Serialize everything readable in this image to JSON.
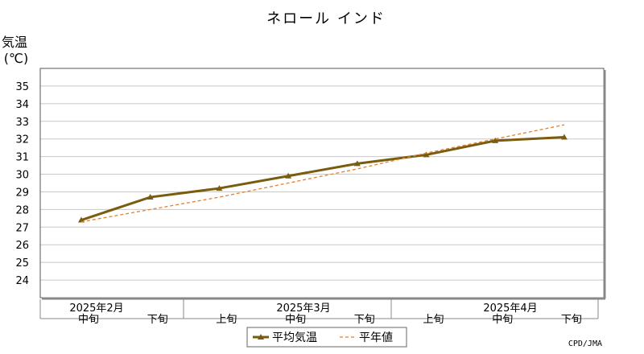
{
  "chart_data": {
    "type": "line",
    "title": "ネロール インド",
    "ylabel_line1": "気温",
    "ylabel_line2": "(℃)",
    "ylim": [
      23,
      36
    ],
    "yticks": [
      24,
      25,
      26,
      27,
      28,
      29,
      30,
      31,
      32,
      33,
      34,
      35
    ],
    "grid": true,
    "legend_placement": "bottom",
    "credit": "CPD/JMA",
    "month_labels": [
      "2025年2月",
      "2025年3月",
      "2025年4月"
    ],
    "categories": [
      "中旬",
      "下旬",
      "上旬",
      "中旬",
      "下旬",
      "上旬",
      "中旬",
      "下旬"
    ],
    "series": [
      {
        "name": "平均気温",
        "style": "solid-marker",
        "color": "#7a5c0f",
        "values": [
          27.4,
          28.7,
          29.2,
          29.9,
          30.6,
          31.1,
          31.9,
          32.1
        ]
      },
      {
        "name": "平年値",
        "style": "dashed",
        "color": "#e87c2a",
        "values": [
          27.3,
          28.0,
          28.7,
          29.5,
          30.3,
          31.2,
          32.0,
          32.8
        ]
      }
    ]
  }
}
